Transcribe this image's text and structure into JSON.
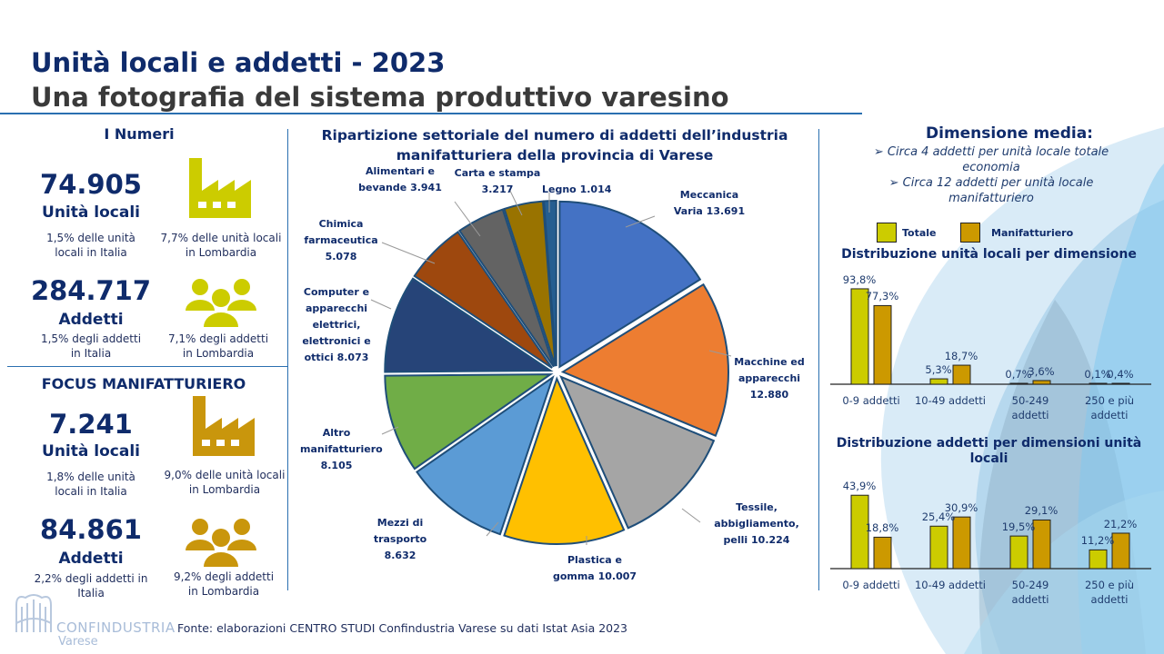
{
  "header": {
    "title": "Unità locali e addetti - 2023",
    "subtitle": "Una fotografia del sistema produttivo varesino"
  },
  "numeri": {
    "heading": "I Numeri",
    "unita": {
      "value": "74.905",
      "label": "Unità locali",
      "italia": "1,5% delle unità locali in Italia",
      "lombardia": "7,7% delle unità locali in Lombardia"
    },
    "addetti": {
      "value": "284.717",
      "label": "Addetti",
      "italia": "1,5% degli addetti in Italia",
      "lombardia": "7,1% degli addetti in Lombardia"
    }
  },
  "focus": {
    "heading": "FOCUS MANIFATTURIERO",
    "unita": {
      "value": "7.241",
      "label": "Unità locali",
      "italia": "1,8% delle unità locali in Italia",
      "lombardia": "9,0% delle unità locali in Lombardia"
    },
    "addetti": {
      "value": "84.861",
      "label": "Addetti",
      "italia": "2,2% degli addetti in Italia",
      "lombardia": "9,2% degli addetti in Lombardia"
    }
  },
  "dimensione": {
    "heading": "Dimensione media:",
    "bullets": [
      "Circa 4 addetti per unità locale totale economia",
      "Circa 12 addetti per unità locale manifatturiero"
    ]
  },
  "colors": {
    "totale": "#cccc00",
    "manifatturiero": "#cc9900",
    "icon_numeri": "#cccc00",
    "icon_focus": "#c9960c"
  },
  "footer": {
    "source": "Fonte: elaborazioni CENTRO STUDI Confindustria Varese su dati Istat Asia 2023",
    "logo": "CONFINDUSTRIA Varese"
  },
  "chart_data": [
    {
      "type": "pie",
      "title": "Ripartizione settoriale del numero di addetti dell’industria manifatturiera della provincia di Varese",
      "slices": [
        {
          "label": "Meccanica Varia",
          "value": 13691,
          "value_label": "13.691",
          "color": "#4472c4"
        },
        {
          "label": "Macchine ed apparecchi",
          "value": 12880,
          "value_label": "12.880",
          "color": "#ed7d31"
        },
        {
          "label": "Tessile, abbigliamento, pelli",
          "value": 10224,
          "value_label": "10.224",
          "color": "#a5a5a5"
        },
        {
          "label": "Plastica e gomma",
          "value": 10007,
          "value_label": "10.007",
          "color": "#ffc000"
        },
        {
          "label": "Mezzi di trasporto",
          "value": 8632,
          "value_label": "8.632",
          "color": "#5b9bd5"
        },
        {
          "label": "Altro manifatturiero",
          "value": 8105,
          "value_label": "8.105",
          "color": "#70ad47"
        },
        {
          "label": "Computer e apparecchi elettrici, elettronici e ottici",
          "value": 8073,
          "value_label": "8.073",
          "color": "#264478"
        },
        {
          "label": "Chimica farmaceutica",
          "value": 5078,
          "value_label": "5.078",
          "color": "#9e480e"
        },
        {
          "label": "Alimentari e bevande",
          "value": 3941,
          "value_label": "3.941",
          "color": "#636363"
        },
        {
          "label": "Carta e stampa",
          "value": 3217,
          "value_label": "3.217",
          "color": "#997300"
        },
        {
          "label": "Legno",
          "value": 1014,
          "value_label": "1.014",
          "color": "#255e91"
        }
      ]
    },
    {
      "type": "bar",
      "title": "Distribuzione unità locali per dimensione",
      "categories": [
        "0-9 addetti",
        "10-49 addetti",
        "50-249 addetti",
        "250 e più addetti"
      ],
      "series": [
        {
          "name": "Totale",
          "values": [
            93.8,
            5.3,
            0.7,
            0.1
          ],
          "labels": [
            "93,8%",
            "5,3%",
            "0,7%",
            "0,1%"
          ]
        },
        {
          "name": "Manifatturiero",
          "values": [
            77.3,
            18.7,
            3.6,
            0.4
          ],
          "labels": [
            "77,3%",
            "18,7%",
            "3,6%",
            "0,4%"
          ]
        }
      ],
      "ylim": [
        0,
        100
      ]
    },
    {
      "type": "bar",
      "title": "Distribuzione addetti per dimensioni unità locali",
      "categories": [
        "0-9 addetti",
        "10-49 addetti",
        "50-249 addetti",
        "250 e più addetti"
      ],
      "series": [
        {
          "name": "Totale",
          "values": [
            43.9,
            25.4,
            19.5,
            11.2
          ],
          "labels": [
            "43,9%",
            "25,4%",
            "19,5%",
            "11,2%"
          ]
        },
        {
          "name": "Manifatturiero",
          "values": [
            18.8,
            30.9,
            29.1,
            21.2
          ],
          "labels": [
            "18,8%",
            "30,9%",
            "29,1%",
            "21,2%"
          ]
        }
      ],
      "ylim": [
        0,
        50
      ]
    }
  ]
}
